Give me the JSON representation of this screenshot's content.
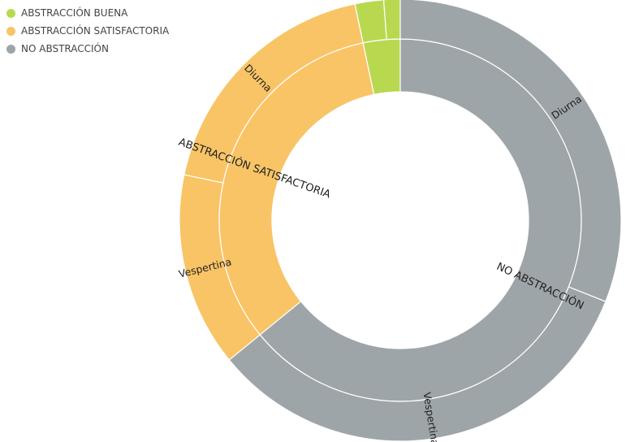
{
  "chart_data": {
    "type": "sunburst",
    "legend_position": "top-left",
    "colors": {
      "ABSTRACCIÓN BUENA": "#b8d94f",
      "ABSTRACCIÓN SATISFACTORIA": "#f8c466",
      "NO ABSTRACCIÓN": "#9ea5a8"
    },
    "legend": [
      "ABSTRACCIÓN BUENA",
      "ABSTRACCIÓN SATISFACTORIA",
      "NO ABSTRACCIÓN"
    ],
    "inner_ring": [
      {
        "name": "ABSTRACCIÓN BUENA",
        "value": 3.3,
        "label": ""
      },
      {
        "name": "ABSTRACCIÓN SATISFACTORIA",
        "value": 32.6,
        "label": "ABSTRACCIÓN SATISFACTORIA"
      },
      {
        "name": "NO ABSTRACCIÓN",
        "value": 64.1,
        "label": "NO ABSTRACCIÓN"
      }
    ],
    "outer_ring": [
      {
        "parent": "ABSTRACCIÓN BUENA",
        "name": "Diurna",
        "value": 2.1,
        "label": ""
      },
      {
        "parent": "ABSTRACCIÓN BUENA",
        "name": "Vespertina",
        "value": 1.2,
        "label": ""
      },
      {
        "parent": "ABSTRACCIÓN SATISFACTORIA",
        "name": "Vespertina",
        "value": 14.2,
        "label": "Vespertina"
      },
      {
        "parent": "ABSTRACCIÓN SATISFACTORIA",
        "name": "Diurna",
        "value": 18.4,
        "label": "Diurna"
      },
      {
        "parent": "NO ABSTRACCIÓN",
        "name": "Diurna",
        "value": 31.0,
        "label": "Diurna"
      },
      {
        "parent": "NO ABSTRACCIÓN",
        "name": "Vespertina",
        "value": 33.1,
        "label": "Vespertina"
      }
    ]
  }
}
